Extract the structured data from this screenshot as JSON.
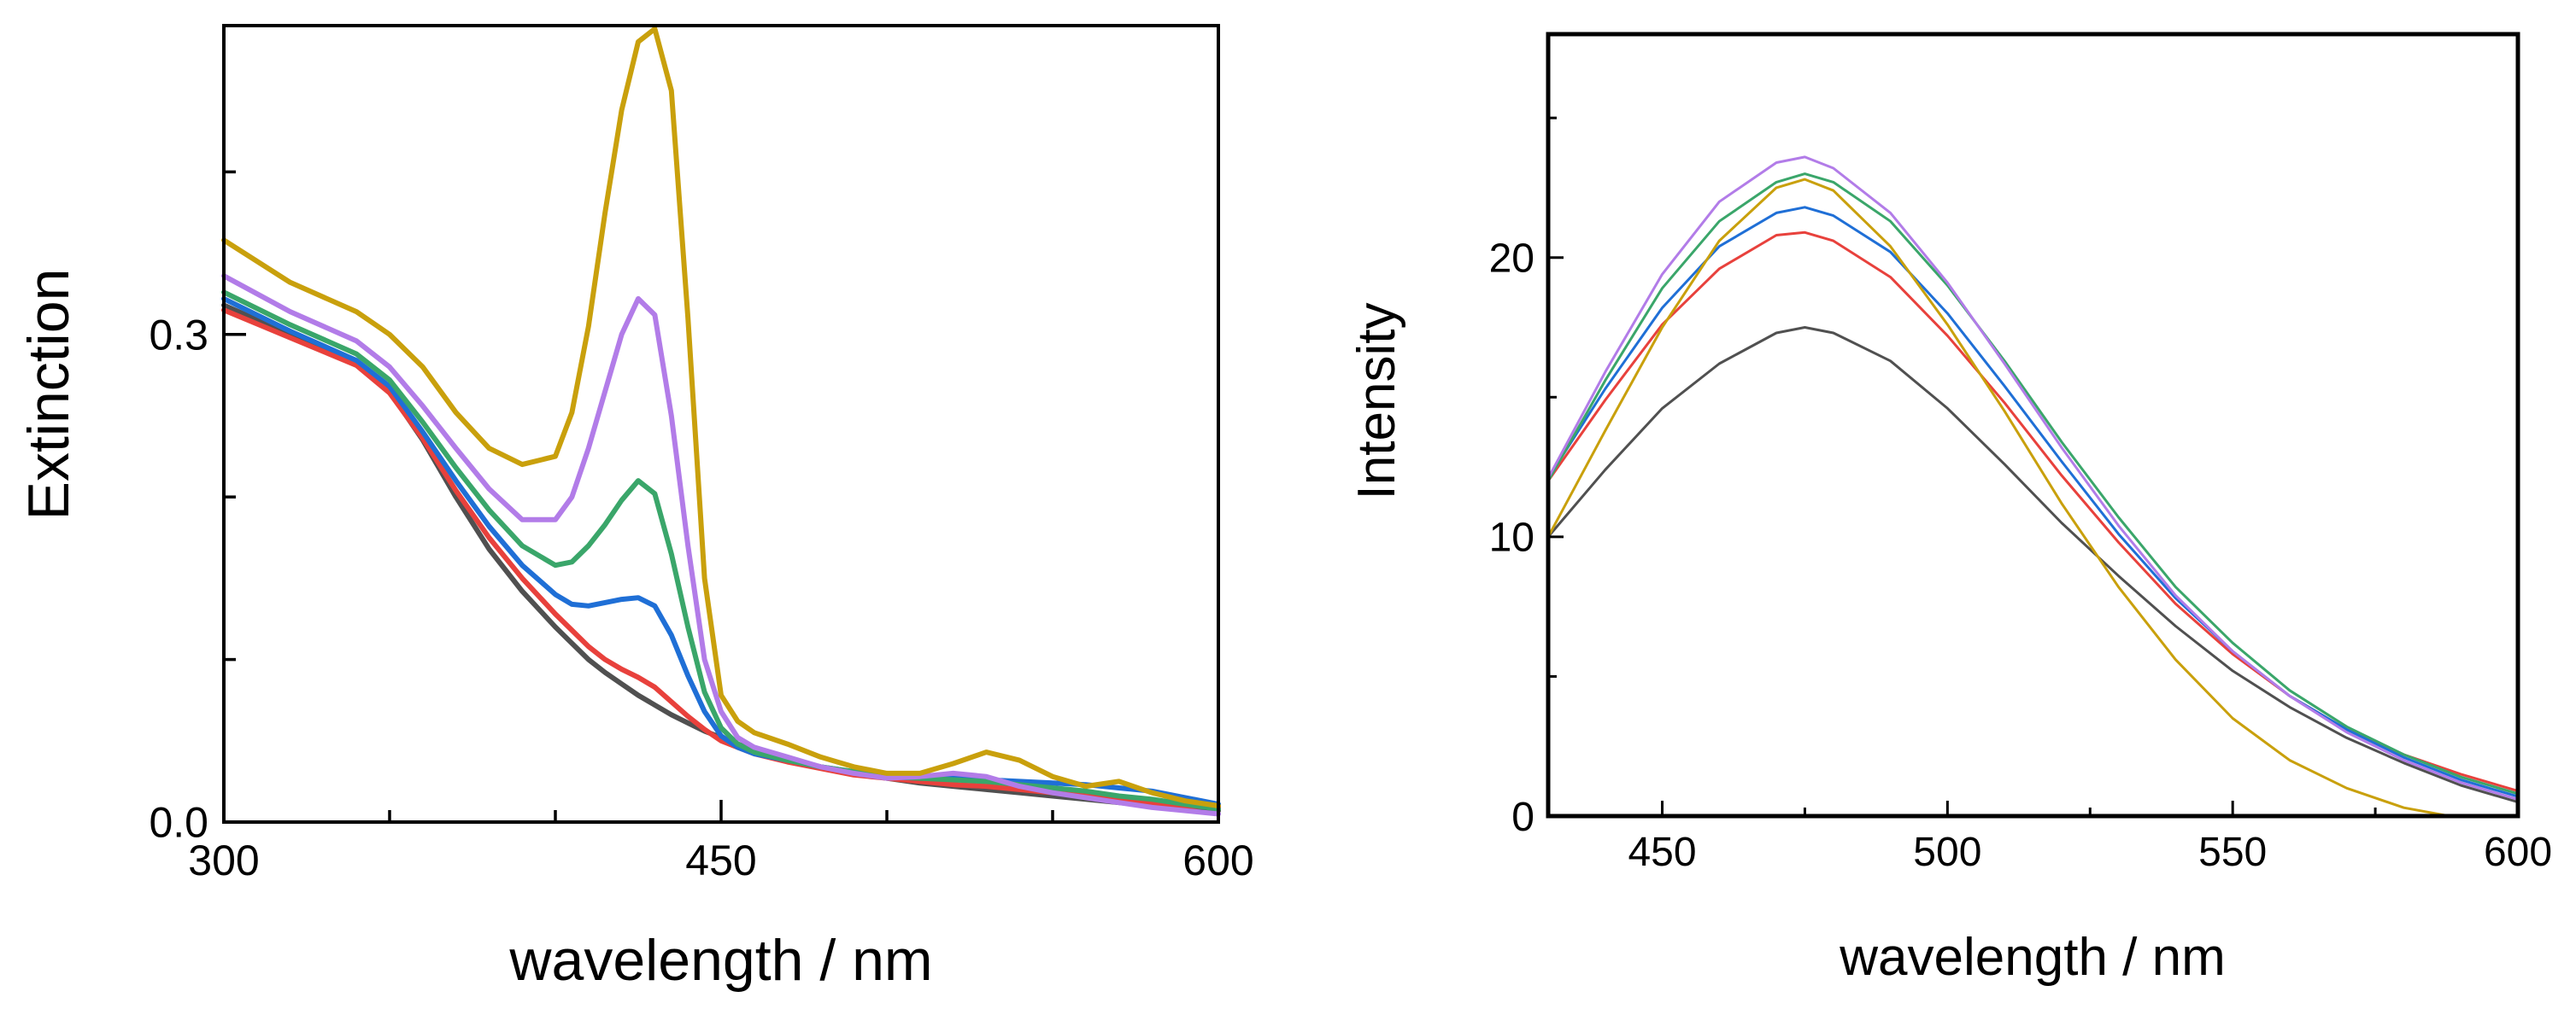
{
  "chart_data": [
    {
      "id": "extinction",
      "type": "line",
      "title": "",
      "xlabel": "wavelength / nm",
      "ylabel": "Extinction",
      "xlim": [
        300,
        600
      ],
      "ylim": [
        0,
        0.49
      ],
      "grid": false,
      "x_major_ticks": [
        300,
        450,
        600
      ],
      "x_tick_labels": [
        "300",
        "450",
        "600"
      ],
      "x_minor_ticks": [
        350,
        400,
        500,
        550
      ],
      "y_major_ticks": [
        0.0,
        0.3
      ],
      "y_tick_labels": [
        "0.0",
        "0.3"
      ],
      "y_minor_ticks": [
        0.1,
        0.2,
        0.4
      ],
      "x": [
        300,
        320,
        340,
        350,
        360,
        370,
        380,
        390,
        400,
        405,
        410,
        415,
        420,
        425,
        430,
        435,
        440,
        445,
        450,
        455,
        460,
        470,
        480,
        490,
        500,
        510,
        520,
        530,
        540,
        550,
        560,
        570,
        580,
        590,
        600
      ],
      "series": [
        {
          "name": "black",
          "color": "#505050",
          "values": [
            0.318,
            0.3,
            0.282,
            0.265,
            0.235,
            0.2,
            0.168,
            0.142,
            0.12,
            0.11,
            0.1,
            0.092,
            0.085,
            0.078,
            0.072,
            0.066,
            0.061,
            0.056,
            0.052,
            0.048,
            0.044,
            0.039,
            0.034,
            0.03,
            0.027,
            0.024,
            0.022,
            0.02,
            0.018,
            0.016,
            0.014,
            0.012,
            0.01,
            0.008,
            0.007
          ]
        },
        {
          "name": "red",
          "color": "#e8413c",
          "values": [
            0.315,
            0.298,
            0.281,
            0.264,
            0.236,
            0.204,
            0.175,
            0.15,
            0.128,
            0.118,
            0.108,
            0.1,
            0.094,
            0.089,
            0.083,
            0.074,
            0.065,
            0.057,
            0.05,
            0.046,
            0.042,
            0.037,
            0.033,
            0.029,
            0.027,
            0.025,
            0.023,
            0.022,
            0.02,
            0.018,
            0.016,
            0.014,
            0.012,
            0.01,
            0.009
          ]
        },
        {
          "name": "blue",
          "color": "#1f6fd6",
          "values": [
            0.322,
            0.302,
            0.284,
            0.268,
            0.24,
            0.21,
            0.182,
            0.158,
            0.14,
            0.134,
            0.133,
            0.135,
            0.137,
            0.138,
            0.133,
            0.115,
            0.09,
            0.068,
            0.053,
            0.046,
            0.042,
            0.038,
            0.034,
            0.031,
            0.028,
            0.027,
            0.027,
            0.026,
            0.025,
            0.024,
            0.023,
            0.021,
            0.019,
            0.015,
            0.011
          ]
        },
        {
          "name": "green",
          "color": "#3aa66a",
          "values": [
            0.326,
            0.306,
            0.288,
            0.272,
            0.246,
            0.218,
            0.192,
            0.17,
            0.158,
            0.16,
            0.17,
            0.183,
            0.198,
            0.21,
            0.202,
            0.165,
            0.12,
            0.08,
            0.058,
            0.048,
            0.043,
            0.038,
            0.034,
            0.031,
            0.028,
            0.027,
            0.026,
            0.025,
            0.023,
            0.021,
            0.019,
            0.016,
            0.014,
            0.011,
            0.008
          ]
        },
        {
          "name": "purple",
          "color": "#b27ce8",
          "values": [
            0.336,
            0.314,
            0.296,
            0.28,
            0.256,
            0.23,
            0.205,
            0.186,
            0.186,
            0.2,
            0.23,
            0.265,
            0.3,
            0.322,
            0.312,
            0.25,
            0.17,
            0.1,
            0.068,
            0.052,
            0.046,
            0.04,
            0.034,
            0.03,
            0.027,
            0.028,
            0.03,
            0.028,
            0.022,
            0.018,
            0.015,
            0.012,
            0.009,
            0.007,
            0.005
          ]
        },
        {
          "name": "gold",
          "color": "#c9a00c",
          "values": [
            0.358,
            0.332,
            0.314,
            0.3,
            0.28,
            0.252,
            0.23,
            0.22,
            0.225,
            0.252,
            0.305,
            0.375,
            0.438,
            0.48,
            0.488,
            0.45,
            0.31,
            0.15,
            0.078,
            0.062,
            0.055,
            0.048,
            0.04,
            0.034,
            0.03,
            0.03,
            0.036,
            0.043,
            0.038,
            0.028,
            0.022,
            0.025,
            0.018,
            0.013,
            0.01
          ]
        }
      ]
    },
    {
      "id": "emission",
      "type": "line",
      "title": "",
      "xlabel": "wavelength / nm",
      "ylabel": "Intensity",
      "xlim": [
        430,
        600
      ],
      "ylim": [
        0,
        28
      ],
      "grid": false,
      "x_major_ticks": [
        450,
        500,
        550,
        600
      ],
      "x_tick_labels": [
        "450",
        "500",
        "550",
        "600"
      ],
      "x_minor_ticks": [
        475,
        525,
        575
      ],
      "y_major_ticks": [
        0,
        10,
        20
      ],
      "y_tick_labels": [
        "0",
        "10",
        "20"
      ],
      "y_minor_ticks": [
        5,
        15,
        25
      ],
      "series": [
        {
          "name": "black",
          "color": "#505050",
          "x": [
            430,
            440,
            450,
            460,
            470,
            475,
            480,
            490,
            500,
            510,
            520,
            530,
            540,
            550,
            560,
            570,
            580,
            590,
            600
          ],
          "values": [
            10.0,
            12.4,
            14.6,
            16.2,
            17.3,
            17.5,
            17.3,
            16.3,
            14.6,
            12.6,
            10.5,
            8.6,
            6.8,
            5.2,
            3.9,
            2.8,
            1.9,
            1.1,
            0.5
          ]
        },
        {
          "name": "red",
          "color": "#e8413c",
          "x": [
            430,
            440,
            450,
            460,
            470,
            475,
            480,
            490,
            500,
            510,
            520,
            530,
            540,
            550,
            560,
            570,
            580,
            590,
            600
          ],
          "values": [
            12.0,
            14.9,
            17.6,
            19.6,
            20.8,
            20.9,
            20.6,
            19.3,
            17.2,
            14.8,
            12.2,
            9.8,
            7.6,
            5.8,
            4.3,
            3.1,
            2.2,
            1.5,
            0.9
          ]
        },
        {
          "name": "blue",
          "color": "#1f6fd6",
          "x": [
            430,
            440,
            450,
            460,
            470,
            475,
            480,
            490,
            500,
            510,
            520,
            530,
            540,
            550,
            560,
            570,
            580,
            590,
            600
          ],
          "values": [
            12.1,
            15.3,
            18.2,
            20.4,
            21.6,
            21.8,
            21.5,
            20.2,
            18.0,
            15.4,
            12.7,
            10.1,
            7.8,
            5.9,
            4.3,
            3.1,
            2.1,
            1.3,
            0.7
          ]
        },
        {
          "name": "green",
          "color": "#3aa66a",
          "x": [
            430,
            440,
            450,
            460,
            470,
            475,
            480,
            490,
            500,
            510,
            520,
            530,
            540,
            550,
            560,
            570,
            580,
            590,
            600
          ],
          "values": [
            12.0,
            15.6,
            18.9,
            21.3,
            22.7,
            23.0,
            22.7,
            21.3,
            19.0,
            16.3,
            13.4,
            10.7,
            8.2,
            6.2,
            4.5,
            3.2,
            2.2,
            1.4,
            0.8
          ]
        },
        {
          "name": "purple",
          "color": "#b27ce8",
          "x": [
            430,
            440,
            450,
            460,
            470,
            475,
            480,
            490,
            500,
            510,
            520,
            530,
            540,
            550,
            560,
            570,
            580,
            590,
            600
          ],
          "values": [
            12.1,
            15.9,
            19.4,
            22.0,
            23.4,
            23.6,
            23.2,
            21.6,
            19.1,
            16.2,
            13.2,
            10.4,
            7.9,
            5.9,
            4.3,
            3.0,
            2.0,
            1.2,
            0.6
          ]
        },
        {
          "name": "gold",
          "color": "#c9a00c",
          "x": [
            430,
            440,
            450,
            460,
            470,
            475,
            480,
            490,
            500,
            510,
            520,
            530,
            540,
            550,
            560,
            570,
            580,
            588
          ],
          "values": [
            10.0,
            13.8,
            17.5,
            20.6,
            22.5,
            22.8,
            22.4,
            20.4,
            17.6,
            14.5,
            11.2,
            8.2,
            5.6,
            3.5,
            2.0,
            1.0,
            0.3,
            0.0
          ]
        }
      ]
    }
  ]
}
